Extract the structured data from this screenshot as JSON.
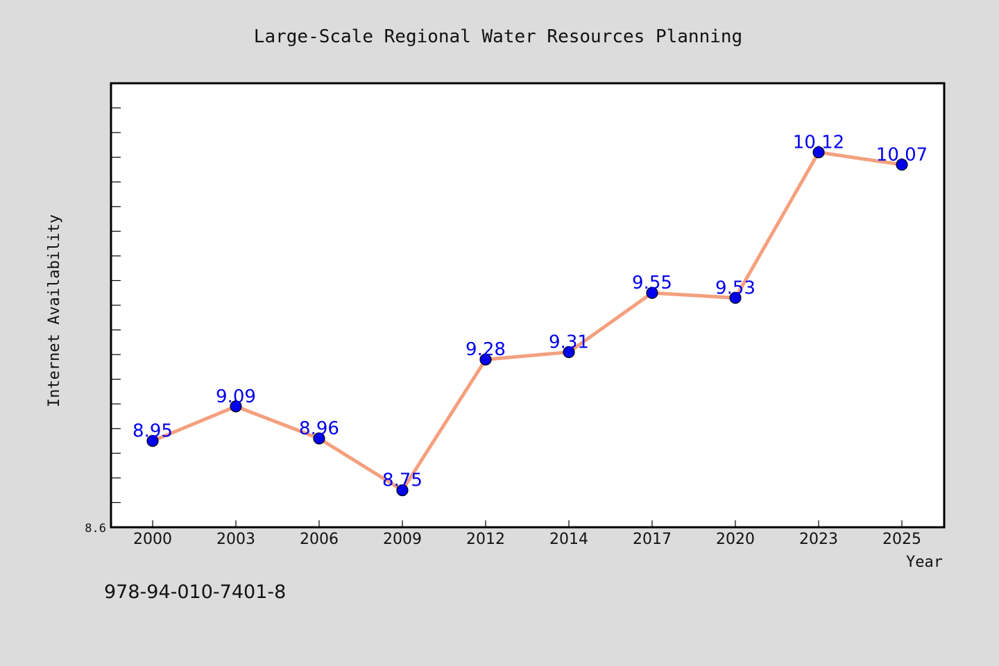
{
  "chart_data": {
    "type": "line",
    "title": "Large-Scale Regional Water Resources Planning",
    "xlabel": "Year",
    "ylabel": "Internet Availability",
    "categories": [
      "2000",
      "2003",
      "2006",
      "2009",
      "2012",
      "2014",
      "2017",
      "2020",
      "2023",
      "2025"
    ],
    "series": [
      {
        "values": [
          8.95,
          9.09,
          8.96,
          8.75,
          9.28,
          9.31,
          9.55,
          9.53,
          10.12,
          10.07
        ]
      }
    ],
    "ylim": [
      8.6,
      10.4
    ],
    "y_tick_label": "8.6",
    "grid": false,
    "legend": "none",
    "colors": {
      "line": "#f4a07e",
      "marker": "#0000ee",
      "data_label": "#0000ee",
      "plot_background": "#ffffff",
      "figure_background": "#dcdcdc"
    }
  },
  "footer": {
    "isbn": "978-94-010-7401-8"
  }
}
